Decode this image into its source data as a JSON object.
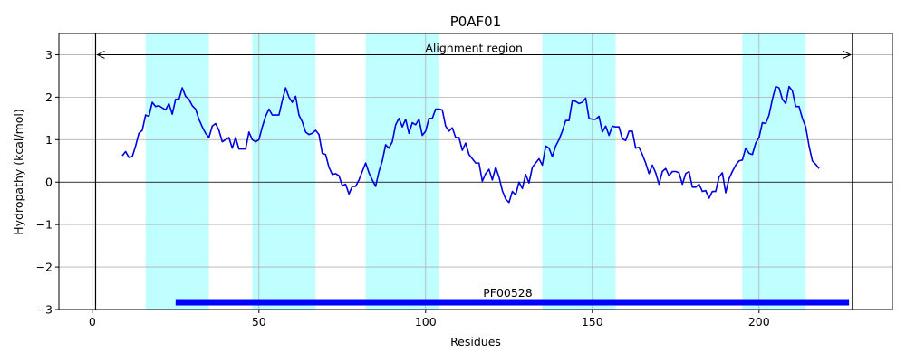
{
  "chart_data": {
    "type": "line",
    "title": "P0AF01",
    "xlabel": "Residues",
    "ylabel": "Hydropathy (kcal/mol)",
    "xlim": [
      -10,
      240
    ],
    "ylim": [
      -3,
      3.5
    ],
    "xticks": [
      0,
      50,
      100,
      150,
      200
    ],
    "yticks": [
      -3,
      -2,
      -1,
      0,
      1,
      2,
      3
    ],
    "xtick_labels": [
      "0",
      "50",
      "100",
      "150",
      "200"
    ],
    "ytick_labels": [
      "−3",
      "−2",
      "−1",
      "0",
      "1",
      "2",
      "3"
    ],
    "grid": true,
    "line_color": "#0000dd",
    "highlight_color": "#bfffff",
    "domain_color": "#0000ff",
    "highlight_regions": [
      [
        16,
        35
      ],
      [
        48,
        67
      ],
      [
        82,
        104
      ],
      [
        135,
        157
      ],
      [
        195,
        214
      ]
    ],
    "alignment_region": {
      "label": "Alignment region",
      "start": 1,
      "end": 228,
      "y": 3.0
    },
    "domain": {
      "label": "PF00528",
      "start": 25,
      "end": 227,
      "y": -2.83
    },
    "series": [
      {
        "x": [
          9,
          10,
          11,
          12,
          13,
          14,
          15,
          16,
          17,
          18,
          19,
          20,
          21,
          22,
          23,
          24,
          25,
          26,
          27,
          28,
          29,
          30,
          31,
          32,
          33,
          34,
          35,
          36,
          37,
          38,
          39,
          40,
          41,
          42,
          43,
          44,
          45,
          46,
          47,
          48,
          49,
          50,
          51,
          52,
          53,
          54,
          55,
          56,
          57,
          58,
          59,
          60,
          61,
          62,
          63,
          64,
          65,
          66,
          67,
          68,
          69,
          70,
          71,
          72,
          73,
          74,
          75,
          76,
          77,
          78,
          79,
          80,
          81,
          82,
          83,
          84,
          85,
          86,
          87,
          88,
          89,
          90,
          91,
          92,
          93,
          94,
          95,
          96,
          97,
          98,
          99,
          100,
          101,
          102,
          103,
          104,
          105,
          106,
          107,
          108,
          109,
          110,
          111,
          112,
          113,
          114,
          115,
          116,
          117,
          118,
          119,
          120,
          121,
          122,
          123,
          124,
          125,
          126,
          127,
          128,
          129,
          130,
          131,
          132,
          133,
          134,
          135,
          136,
          137,
          138,
          139,
          140,
          141,
          142,
          143,
          144,
          145,
          146,
          147,
          148,
          149,
          150,
          151,
          152,
          153,
          154,
          155,
          156,
          157,
          158,
          159,
          160,
          161,
          162,
          163,
          164,
          165,
          166,
          167,
          168,
          169,
          170,
          171,
          172,
          173,
          174,
          175,
          176,
          177,
          178,
          179,
          180,
          181,
          182,
          183,
          184,
          185,
          186,
          187,
          188,
          189,
          190,
          191,
          192,
          193,
          194,
          195,
          196,
          197,
          198,
          199,
          200,
          201,
          202,
          203,
          204,
          205,
          206,
          207,
          208,
          209,
          210,
          211,
          212,
          213,
          214,
          215,
          216,
          217,
          218
        ],
        "y": [
          0.62,
          0.72,
          0.58,
          0.6,
          0.85,
          1.15,
          1.22,
          1.58,
          1.55,
          1.88,
          1.78,
          1.8,
          1.75,
          1.7,
          1.85,
          1.6,
          1.95,
          1.95,
          2.22,
          2.02,
          1.95,
          1.8,
          1.72,
          1.48,
          1.3,
          1.15,
          1.05,
          1.32,
          1.38,
          1.22,
          0.95,
          1.0,
          1.05,
          0.8,
          1.05,
          0.78,
          0.78,
          0.78,
          1.18,
          1.0,
          0.95,
          1.0,
          1.3,
          1.55,
          1.72,
          1.58,
          1.58,
          1.58,
          1.92,
          2.22,
          2.0,
          1.88,
          2.02,
          1.58,
          1.42,
          1.18,
          1.12,
          1.15,
          1.22,
          1.12,
          0.68,
          0.65,
          0.35,
          0.18,
          0.2,
          0.15,
          -0.08,
          -0.05,
          -0.28,
          -0.1,
          -0.1,
          0.05,
          0.25,
          0.45,
          0.22,
          0.05,
          -0.1,
          0.25,
          0.5,
          0.88,
          0.8,
          0.95,
          1.35,
          1.5,
          1.3,
          1.48,
          1.15,
          1.4,
          1.35,
          1.48,
          1.1,
          1.2,
          1.5,
          1.5,
          1.72,
          1.72,
          1.7,
          1.32,
          1.2,
          1.28,
          1.05,
          1.05,
          0.75,
          0.92,
          0.65,
          0.55,
          0.45,
          0.45,
          0.02,
          0.2,
          0.3,
          0.05,
          0.35,
          0.12,
          -0.2,
          -0.4,
          -0.48,
          -0.22,
          -0.3,
          0.0,
          -0.15,
          0.18,
          -0.02,
          0.35,
          0.45,
          0.55,
          0.4,
          0.85,
          0.8,
          0.6,
          0.85,
          1.0,
          1.2,
          1.45,
          1.45,
          1.92,
          1.9,
          1.85,
          1.88,
          1.98,
          1.5,
          1.48,
          1.48,
          1.55,
          1.18,
          1.32,
          1.1,
          1.32,
          1.3,
          1.3,
          1.02,
          0.98,
          1.2,
          1.2,
          0.8,
          0.82,
          0.65,
          0.45,
          0.2,
          0.4,
          0.22,
          -0.05,
          0.25,
          0.32,
          0.15,
          0.25,
          0.25,
          0.22,
          -0.05,
          0.2,
          0.25,
          -0.12,
          -0.12,
          -0.05,
          -0.22,
          -0.2,
          -0.38,
          -0.22,
          -0.22,
          0.12,
          0.22,
          -0.25,
          0.08,
          0.25,
          0.4,
          0.5,
          0.52,
          0.8,
          0.68,
          0.65,
          0.92,
          1.05,
          1.4,
          1.38,
          1.58,
          1.95,
          2.25,
          2.22,
          1.95,
          1.85,
          2.25,
          2.15,
          1.78,
          1.78,
          1.5,
          1.3,
          0.85,
          0.5,
          0.42,
          0.32
        ]
      }
    ]
  }
}
